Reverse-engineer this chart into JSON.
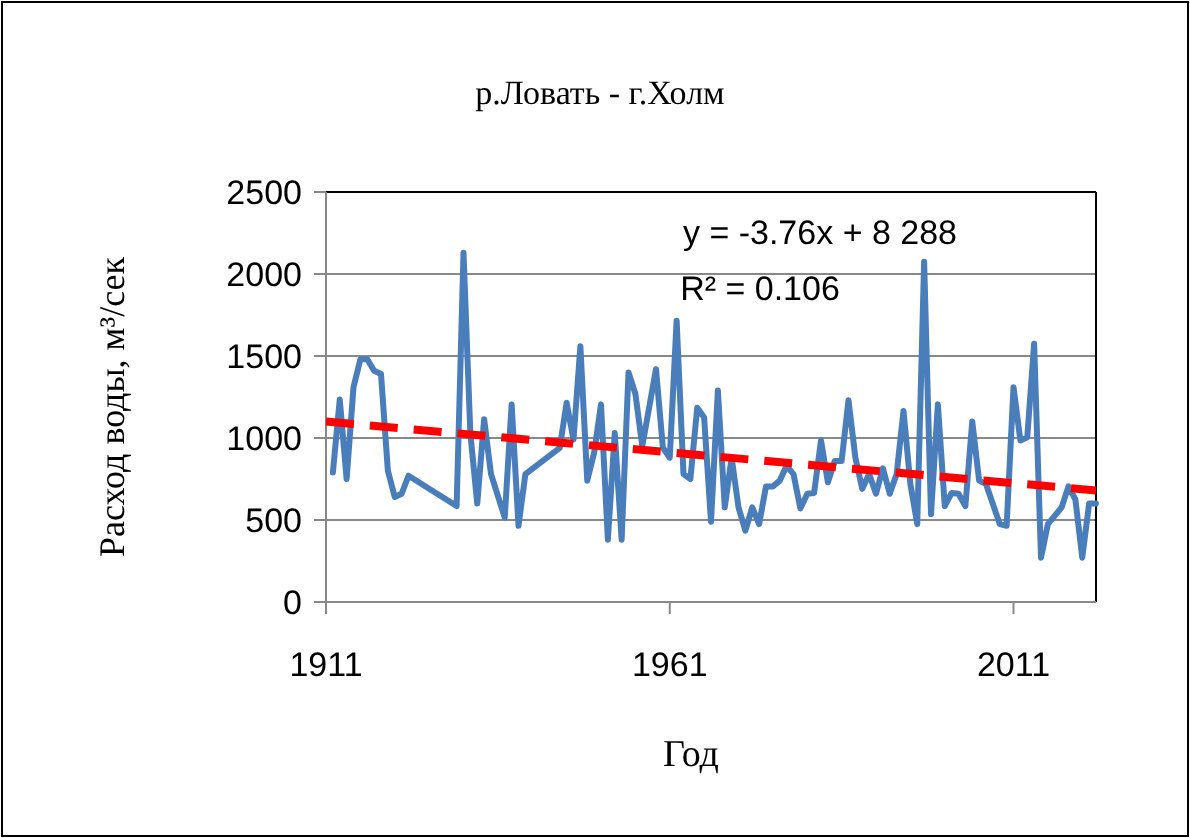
{
  "chart_data": {
    "type": "line",
    "title": "р.Ловать - г.Холм",
    "xlabel": "Год",
    "ylabel": "Расход воды, м³/сек",
    "annotations": [
      "y = -3.76x + 8 288",
      "R² = 0.106"
    ],
    "xlim": [
      1911,
      2023
    ],
    "xticks": [
      1911,
      1961,
      2011
    ],
    "ylim": [
      0,
      2500
    ],
    "yticks": [
      0,
      500,
      1000,
      1500,
      2000,
      2500
    ],
    "grid": "y",
    "series": [
      {
        "color": "#4a7ebb",
        "line_style": "solid",
        "x": [
          1912,
          1913,
          1914,
          1915,
          1916,
          1917,
          1918,
          1919,
          1920,
          1921,
          1922,
          1923,
          1930,
          1931,
          1932,
          1933,
          1934,
          1935,
          1937,
          1938,
          1939,
          1940,
          1945,
          1946,
          1947,
          1948,
          1949,
          1950,
          1951,
          1952,
          1953,
          1954,
          1955,
          1956,
          1957,
          1959,
          1960,
          1961,
          1962,
          1963,
          1964,
          1965,
          1966,
          1967,
          1968,
          1969,
          1970,
          1971,
          1972,
          1973,
          1974,
          1975,
          1976,
          1977,
          1978,
          1979,
          1980,
          1981,
          1982,
          1983,
          1984,
          1985,
          1986,
          1987,
          1988,
          1989,
          1990,
          1991,
          1992,
          1993,
          1994,
          1995,
          1996,
          1997,
          1998,
          1999,
          2000,
          2001,
          2002,
          2003,
          2004,
          2005,
          2006,
          2007,
          2009,
          2010,
          2011,
          2012,
          2013,
          2014,
          2015,
          2016,
          2018,
          2019,
          2020,
          2021,
          2022,
          2023
        ],
        "values": [
          790,
          1235,
          750,
          1310,
          1480,
          1480,
          1410,
          1390,
          800,
          640,
          660,
          770,
          585,
          2130,
          1025,
          600,
          1115,
          780,
          515,
          1205,
          465,
          780,
          940,
          1215,
          990,
          1560,
          740,
          910,
          1205,
          380,
          1030,
          380,
          1400,
          1270,
          950,
          1420,
          940,
          880,
          1715,
          780,
          750,
          1185,
          1125,
          490,
          1290,
          577,
          880,
          577,
          435,
          577,
          475,
          705,
          705,
          740,
          830,
          780,
          570,
          660,
          665,
          985,
          730,
          860,
          860,
          1230,
          880,
          690,
          780,
          660,
          815,
          660,
          780,
          1165,
          720,
          475,
          2075,
          535,
          1205,
          585,
          665,
          660,
          585,
          1100,
          740,
          720,
          475,
          465,
          1310,
          985,
          1005,
          1575,
          270,
          475,
          577,
          705,
          625,
          270,
          600,
          600
        ]
      },
      {
        "color": "#ff0000",
        "line_style": "dashed",
        "x": [
          1911,
          2023
        ],
        "values": [
          1100,
          680
        ]
      }
    ]
  }
}
